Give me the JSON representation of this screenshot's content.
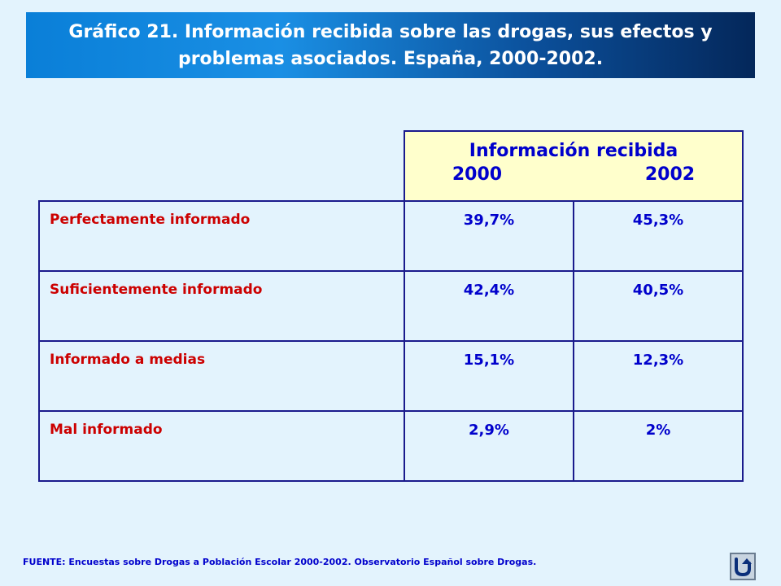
{
  "title": "Gráfico 21. Información recibida sobre las drogas, sus efectos y problemas asociados. España, 2000-2002.",
  "table": {
    "group_header": "Información recibida",
    "years": [
      "2000",
      "2002"
    ],
    "rows": [
      {
        "label": "Perfectamente informado",
        "v2000": "39,7%",
        "v2002": "45,3%"
      },
      {
        "label": "Suficientemente informado",
        "v2000": "42,4%",
        "v2002": "40,5%"
      },
      {
        "label": "Informado a medias",
        "v2000": "15,1%",
        "v2002": "12,3%"
      },
      {
        "label": "Mal informado",
        "v2000": "2,9%",
        "v2002": "2%"
      }
    ]
  },
  "source": "FUENTE: Encuestas sobre Drogas a Población Escolar 2000-2002.  Observatorio Español sobre Drogas.",
  "nav_icon": "return-arrow-icon",
  "colors": {
    "background": "#e3f3fd",
    "header_fill": "#ffffcc",
    "label_text": "#cc0000",
    "value_text": "#0000cc",
    "border": "#1a1a8c"
  }
}
